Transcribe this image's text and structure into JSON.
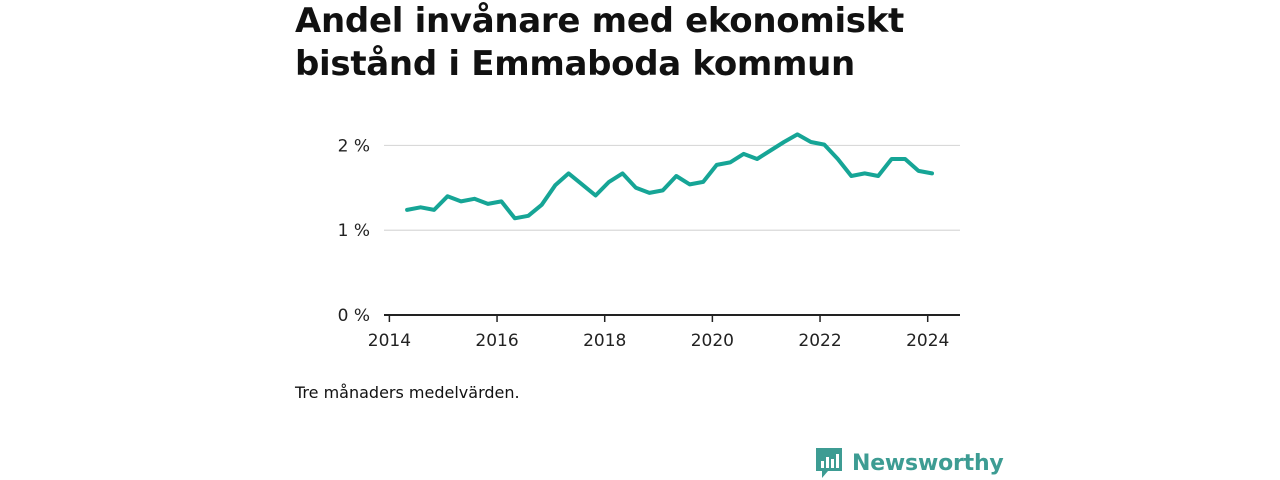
{
  "title": "Andel invånare med ekonomiskt\nbistånd i Emmaboda kommun",
  "note": "Tre månaders medelvärden.",
  "brand": {
    "name": "Newsworthy",
    "icon": "bar-chart-speech-bubble-icon",
    "color": "#3d9c93"
  },
  "chart_data": {
    "type": "line",
    "title": "Andel invånare med ekonomiskt bistånd i Emmaboda kommun",
    "xlabel": "",
    "ylabel": "",
    "xlim": [
      2013.9,
      2024.6
    ],
    "ylim": [
      0,
      2.3
    ],
    "x_ticks": [
      {
        "value": 2014,
        "label": "2014"
      },
      {
        "value": 2016,
        "label": "2016"
      },
      {
        "value": 2018,
        "label": "2018"
      },
      {
        "value": 2020,
        "label": "2020"
      },
      {
        "value": 2022,
        "label": "2022"
      },
      {
        "value": 2024,
        "label": "2024"
      }
    ],
    "y_ticks": [
      {
        "value": 0,
        "label": "0 %"
      },
      {
        "value": 1,
        "label": "1 %"
      },
      {
        "value": 2,
        "label": "2 %"
      }
    ],
    "grid": true,
    "legend": "none",
    "series": [
      {
        "color": "#16a596",
        "x": [
          2014.33,
          2014.58,
          2014.83,
          2015.08,
          2015.33,
          2015.58,
          2015.83,
          2016.08,
          2016.33,
          2016.58,
          2016.83,
          2017.08,
          2017.33,
          2017.58,
          2017.83,
          2018.08,
          2018.33,
          2018.58,
          2018.83,
          2019.08,
          2019.33,
          2019.58,
          2019.83,
          2020.08,
          2020.33,
          2020.58,
          2020.83,
          2021.08,
          2021.33,
          2021.58,
          2021.83,
          2022.08,
          2022.33,
          2022.58,
          2022.83,
          2023.08,
          2023.33,
          2023.58,
          2023.83,
          2024.08
        ],
        "y": [
          1.24,
          1.27,
          1.24,
          1.4,
          1.34,
          1.37,
          1.31,
          1.34,
          1.14,
          1.17,
          1.3,
          1.53,
          1.67,
          1.54,
          1.41,
          1.57,
          1.67,
          1.5,
          1.44,
          1.47,
          1.64,
          1.54,
          1.57,
          1.77,
          1.8,
          1.9,
          1.84,
          1.94,
          2.04,
          2.13,
          2.04,
          2.01,
          1.84,
          1.64,
          1.67,
          1.64,
          1.84,
          1.84,
          1.7,
          1.67
        ]
      }
    ]
  }
}
